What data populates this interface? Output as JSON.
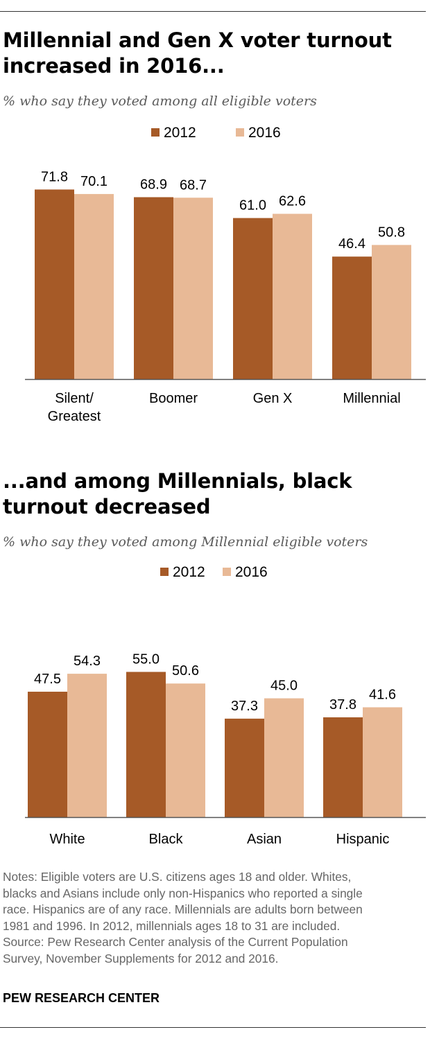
{
  "charts": [
    {
      "title": "Millennial and Gen X voter turnout increased in 2016...",
      "subtitle": "% who say they voted among all eligible voters"
    },
    {
      "title": "...and among Millennials, black turnout decreased",
      "subtitle": "% who say they voted among Millennial eligible voters"
    }
  ],
  "chart_data": [
    {
      "type": "bar",
      "title": "Millennial and Gen X voter turnout increased in 2016...",
      "subtitle": "% who say they voted among all eligible voters",
      "categories": [
        [
          "Silent/",
          "Greatest"
        ],
        [
          "Boomer"
        ],
        [
          "Gen X"
        ],
        [
          "Millennial"
        ]
      ],
      "series": [
        {
          "name": "2012",
          "values": [
            71.8,
            68.9,
            61.0,
            46.4
          ],
          "color": "#a65a27"
        },
        {
          "name": "2016",
          "values": [
            70.1,
            68.7,
            62.6,
            50.8
          ],
          "color": "#e8b996"
        }
      ],
      "value_labels": [
        [
          "71.8",
          "68.9",
          "61.0",
          "46.4"
        ],
        [
          "70.1",
          "68.7",
          "62.6",
          "50.8"
        ]
      ],
      "ylim": [
        0,
        100
      ],
      "grid": false,
      "legend": "top-center"
    },
    {
      "type": "bar",
      "title": "...and among Millennials, black turnout decreased",
      "subtitle": "% who say they voted among Millennial eligible voters",
      "categories": [
        [
          "White"
        ],
        [
          "Black"
        ],
        [
          "Asian"
        ],
        [
          "Hispanic"
        ]
      ],
      "series": [
        {
          "name": "2012",
          "values": [
            47.5,
            55.0,
            37.3,
            37.8
          ],
          "color": "#a65a27"
        },
        {
          "name": "2016",
          "values": [
            54.3,
            50.6,
            45.0,
            41.6
          ],
          "color": "#e8b996"
        }
      ],
      "value_labels": [
        [
          "47.5",
          "55.0",
          "37.3",
          "37.8"
        ],
        [
          "54.3",
          "50.6",
          "45.0",
          "41.6"
        ]
      ],
      "ylim": [
        0,
        100
      ],
      "grid": false,
      "legend": "top-center"
    }
  ],
  "notes": [
    "Notes: Eligible voters are U.S. citizens ages 18 and older. Whites,",
    "blacks and Asians include only non-Hispanics who reported a single",
    "race. Hispanics are of any race. Millennials are adults born between",
    "1981 and 1996. In 2012, millennials ages 18 to 31 are included.",
    "Source: Pew Research Center analysis of the Current Population",
    "Survey, November Supplements for 2012 and 2016."
  ],
  "brand": "PEW RESEARCH CENTER"
}
